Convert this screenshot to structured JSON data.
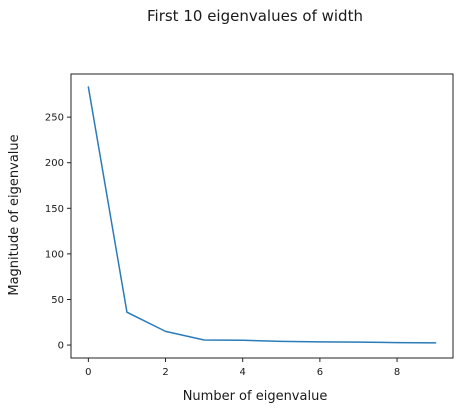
{
  "chart_data": {
    "type": "line",
    "title": "First 10 eigenvalues of width",
    "xlabel": "Number of eigenvalue",
    "ylabel": "Magnitude of eigenvalue",
    "x": [
      0,
      1,
      2,
      3,
      4,
      5,
      6,
      7,
      8,
      9
    ],
    "series": [
      {
        "values": [
          283,
          36,
          15,
          5.5,
          5.2,
          4,
          3.5,
          3.2,
          2.7,
          2.4
        ],
        "color": "#2b7bb9"
      }
    ],
    "x_ticks": [
      0,
      2,
      4,
      6,
      8
    ],
    "y_ticks": [
      0,
      50,
      100,
      150,
      200,
      250
    ],
    "xlim": [
      -0.45,
      9.45
    ],
    "ylim": [
      -14.2,
      297.3
    ],
    "grid": false,
    "legend": "none"
  }
}
